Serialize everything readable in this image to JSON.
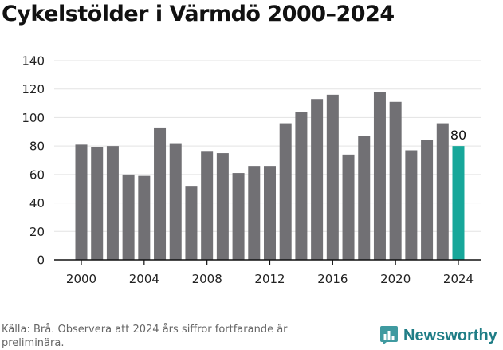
{
  "chart_data": {
    "type": "bar",
    "title": "Cykelstölder i Värmdö 2000–2024",
    "categories": [
      2000,
      2001,
      2002,
      2003,
      2004,
      2005,
      2006,
      2007,
      2008,
      2009,
      2010,
      2011,
      2012,
      2013,
      2014,
      2015,
      2016,
      2017,
      2018,
      2019,
      2020,
      2021,
      2022,
      2023,
      2024
    ],
    "values": [
      81,
      79,
      80,
      60,
      59,
      93,
      82,
      52,
      76,
      75,
      61,
      66,
      66,
      96,
      104,
      113,
      116,
      74,
      87,
      118,
      111,
      77,
      84,
      96,
      80
    ],
    "x_tick_labels": [
      "2000",
      "2004",
      "2008",
      "2012",
      "2016",
      "2020",
      "2024"
    ],
    "y_ticks": [
      0,
      20,
      40,
      60,
      80,
      100,
      120,
      140
    ],
    "ylim": [
      0,
      140
    ],
    "xlabel": "",
    "ylabel": "",
    "highlight_index": 24,
    "highlight_label": "80",
    "grid": true,
    "colors": {
      "bar": "#717074",
      "highlight": "#17a79a",
      "grid": "#e3e3e3"
    }
  },
  "footer": {
    "source": "Källa: Brå. Observera att 2024 års siffror fortfarande är preliminära.",
    "brand": "Newsworthy",
    "brand_icon": "bar-chart-icon",
    "brand_color": "#1f7d86"
  }
}
